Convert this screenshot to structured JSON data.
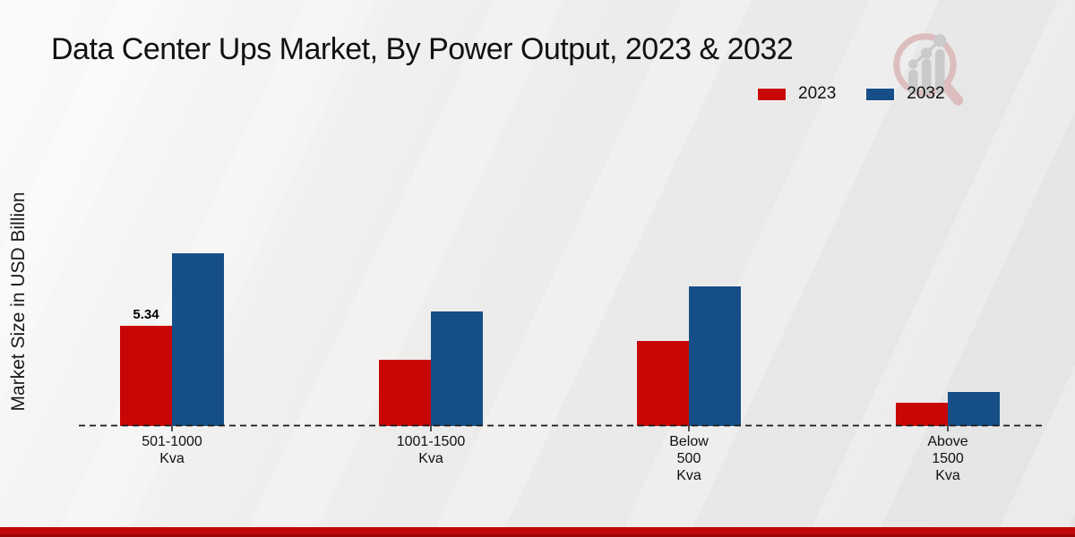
{
  "title": "Data Center Ups Market, By Power Output, 2023 & 2032",
  "ylabel": "Market Size in USD Billion",
  "legend": {
    "items": [
      {
        "label": "2023",
        "color": "#c90606"
      },
      {
        "label": "2032",
        "color": "#164f87"
      }
    ]
  },
  "logo": {
    "icon": "magnifier-bar-chart-watermark"
  },
  "colors": {
    "bar_2023": "#c90606",
    "bar_2032": "#164f87",
    "footer_red": "#c00606",
    "axis": "#1a1a1a"
  },
  "chart_data": {
    "type": "bar",
    "title": "Data Center Ups Market, By Power Output, 2023 & 2032",
    "xlabel": "",
    "ylabel": "Market Size in USD Billion",
    "categories": [
      "501-1000 Kva",
      "1001-1500 Kva",
      "Below 500 Kva",
      "Above 1500 Kva"
    ],
    "categories_lines": [
      [
        "501-1000",
        "Kva"
      ],
      [
        "1001-1500",
        "Kva"
      ],
      [
        "Below",
        "500",
        "Kva"
      ],
      [
        "Above",
        "1500",
        "Kva"
      ]
    ],
    "series": [
      {
        "name": "2023",
        "color": "#c90606",
        "values": [
          5.34,
          3.5,
          4.5,
          1.25
        ]
      },
      {
        "name": "2032",
        "color": "#164f87",
        "values": [
          9.2,
          6.1,
          7.45,
          1.8
        ]
      }
    ],
    "ylim": [
      0,
      10
    ],
    "grid": false,
    "legend_position": "top-right",
    "annotations": [
      {
        "series": "2023",
        "category": "501-1000 Kva",
        "text": "5.34"
      }
    ]
  }
}
